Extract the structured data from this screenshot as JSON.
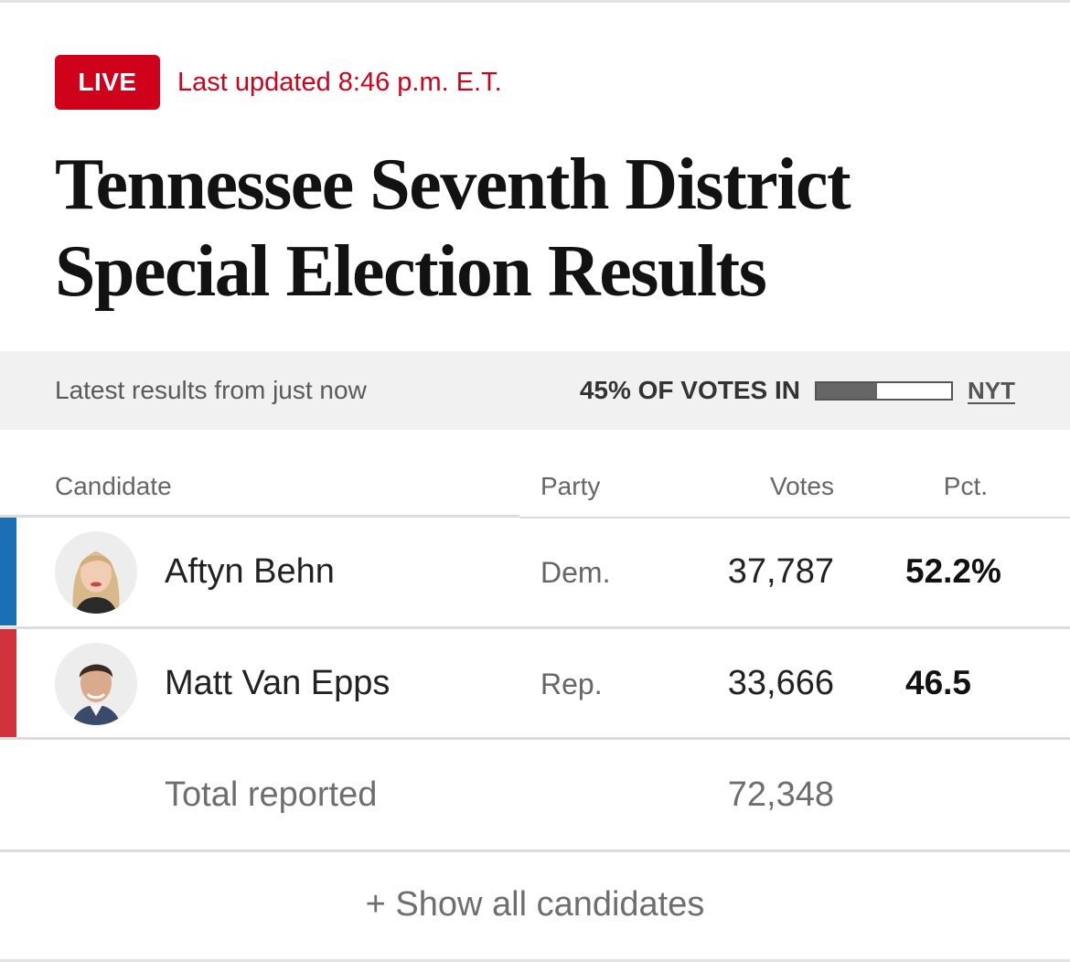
{
  "header": {
    "live_label": "LIVE",
    "last_updated": "Last updated 8:46 p.m. E.T.",
    "title": "Tennessee Seventh District Special Election Results"
  },
  "status": {
    "latest_results": "Latest results from just now",
    "votes_in_label": "45% OF VOTES IN",
    "votes_in_fraction": 0.45,
    "source_link": "NYT"
  },
  "table": {
    "headers": {
      "candidate": "Candidate",
      "party": "Party",
      "votes": "Votes",
      "pct": "Pct."
    },
    "rows": [
      {
        "name": "Aftyn Behn",
        "party": "Dem.",
        "votes": "37,787",
        "pct": "52.2%",
        "party_color": "#1a6fb5",
        "avatar_icon": "candidate-photo-woman-icon"
      },
      {
        "name": "Matt Van Epps",
        "party": "Rep.",
        "votes": "33,666",
        "pct": "46.5",
        "party_color": "#d0333b",
        "avatar_icon": "candidate-photo-man-icon"
      }
    ],
    "total_label": "Total reported",
    "total_votes": "72,348",
    "show_all_label": "+ Show all candidates"
  },
  "colors": {
    "accent_red": "#d0021b",
    "democrat_blue": "#1a6fb5",
    "republican_red": "#d0333b"
  }
}
